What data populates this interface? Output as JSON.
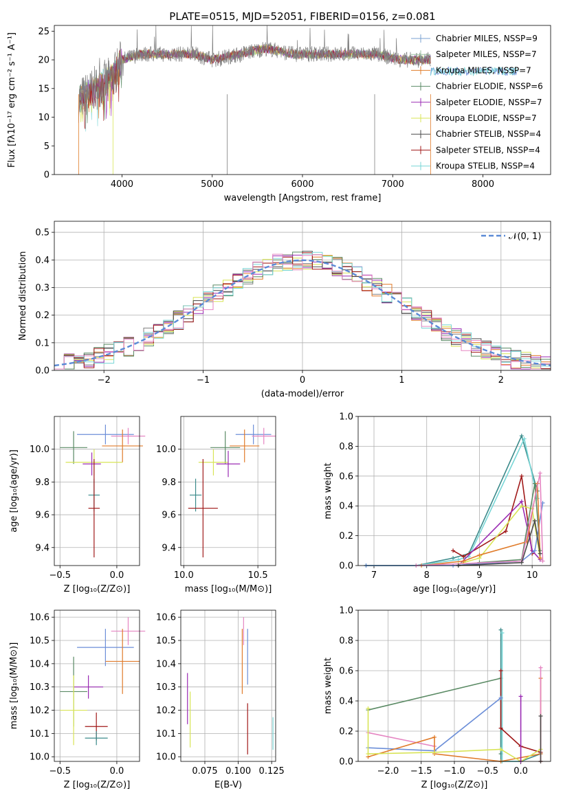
{
  "figure_title": "PLATE=0515, MJD=52051, FIBERID=0156, z=0.081",
  "colors": {
    "grey": "#7f7f7f",
    "orange": "#e07b2a",
    "green": "#5a8a64",
    "purple": "#9a2ab3",
    "yellow": "#d8e456",
    "dark": "#4a4a4a",
    "red": "#a01818",
    "blue": "#6b8ed8",
    "pink": "#e585c2",
    "cyan": "#78d6d6",
    "teal": "#3a8a8a"
  },
  "chart_data": [
    {
      "id": "spectrum",
      "type": "line",
      "title": "PLATE=0515, MJD=52051, FIBERID=0156, z=0.081",
      "xlabel": "wavelength [Angstrom, rest frame]",
      "ylabel": "Flux [fλ10⁻¹⁷ erg cm⁻² s⁻¹ A⁻¹]",
      "xlim": [
        3250,
        8750
      ],
      "ylim": [
        0,
        26
      ],
      "xticks": [
        "4000",
        "5000",
        "6000",
        "7000",
        "8000"
      ],
      "yticks": [
        "0",
        "5",
        "10",
        "15",
        "20",
        "25"
      ],
      "legend_position": "right",
      "legend": [
        {
          "label": "Chabrier MILES, NSSP=9",
          "color": "#78a0d0"
        },
        {
          "label": "Salpeter MILES, NSSP=7",
          "color": "#9ac0a0"
        },
        {
          "label": "Kroupa MILES, NSSP=7",
          "color": "#e07b2a"
        },
        {
          "label": "Chabrier ELODIE, NSSP=6",
          "color": "#5a8a64"
        },
        {
          "label": "Salpeter ELODIE, NSSP=7",
          "color": "#9a2ab3"
        },
        {
          "label": "Kroupa ELODIE, NSSP=7",
          "color": "#d8e456"
        },
        {
          "label": "Chabrier STELIB, NSSP=4",
          "color": "#4a4a4a"
        },
        {
          "label": "Salpeter STELIB, NSSP=4",
          "color": "#a01818"
        },
        {
          "label": "Kroupa STELIB, NSSP=4",
          "color": "#78d6d6"
        }
      ],
      "continuum": [
        [
          3520,
          13
        ],
        [
          3700,
          15
        ],
        [
          3900,
          17
        ],
        [
          4000,
          20
        ],
        [
          4200,
          21
        ],
        [
          4500,
          21
        ],
        [
          4800,
          21
        ],
        [
          5000,
          20
        ],
        [
          5300,
          21
        ],
        [
          5600,
          22
        ],
        [
          5900,
          21
        ],
        [
          6200,
          21
        ],
        [
          6500,
          21
        ],
        [
          6800,
          21
        ],
        [
          7100,
          20
        ],
        [
          7400,
          20
        ]
      ]
    },
    {
      "id": "residuals",
      "type": "line",
      "xlabel": "(data-model)/error",
      "ylabel": "Normed distribution",
      "xlim": [
        -2.5,
        2.5
      ],
      "ylim": [
        0,
        0.54
      ],
      "xticks": [
        "−2",
        "−1",
        "0",
        "1",
        "2"
      ],
      "yticks": [
        "0.0",
        "0.1",
        "0.2",
        "0.3",
        "0.4",
        "0.5"
      ],
      "legend": "𝒩(0, 1)",
      "grid": true,
      "gaussian": {
        "mu": 0,
        "sigma": 1
      }
    },
    {
      "id": "age_vs_Z",
      "type": "scatter",
      "xlabel": "Z [log₁₀(Z/Z⊙)]",
      "ylabel": "age [log₁₀(age/yr)]",
      "xlim": [
        -0.55,
        0.2
      ],
      "ylim": [
        9.29,
        10.2
      ],
      "xticks": [
        "−0.5",
        "0.0"
      ],
      "yticks": [
        "9.4",
        "9.6",
        "9.8",
        "10.0"
      ],
      "grid": true,
      "points": [
        {
          "x": -0.1,
          "y": 10.09,
          "xe": 0.25,
          "ye": 0.06,
          "color": "#6b8ed8"
        },
        {
          "x": 0.1,
          "y": 10.08,
          "xe": 0.15,
          "ye": 0.05,
          "color": "#e585c2"
        },
        {
          "x": 0.05,
          "y": 10.02,
          "xe": 0.18,
          "ye": 0.1,
          "color": "#e07b2a"
        },
        {
          "x": -0.38,
          "y": 10.01,
          "xe": 0.12,
          "ye": 0.1,
          "color": "#5a8a64"
        },
        {
          "x": -0.2,
          "y": 9.92,
          "xe": 0.25,
          "ye": 0.08,
          "color": "#d8e456"
        },
        {
          "x": -0.22,
          "y": 9.91,
          "xe": 0.08,
          "ye": 0.07,
          "color": "#9a2ab3"
        },
        {
          "x": -0.2,
          "y": 9.72,
          "xe": 0.05,
          "ye": 0.1,
          "color": "#3a8a8a"
        },
        {
          "x": -0.2,
          "y": 9.64,
          "xe": 0.05,
          "ye": 0.3,
          "color": "#a01818"
        }
      ]
    },
    {
      "id": "age_vs_mass",
      "type": "scatter",
      "xlabel": "mass [log₁₀(M/M⊙)]",
      "xlim": [
        9.98,
        10.62
      ],
      "ylim": [
        9.29,
        10.2
      ],
      "xticks": [
        "10.0",
        "10.5"
      ],
      "yticks": [
        "9.4",
        "9.6",
        "9.8",
        "10.0"
      ],
      "grid": true,
      "points": [
        {
          "x": 10.47,
          "y": 10.09,
          "xe": 0.12,
          "ye": 0.06,
          "color": "#6b8ed8"
        },
        {
          "x": 10.54,
          "y": 10.08,
          "xe": 0.08,
          "ye": 0.05,
          "color": "#e585c2"
        },
        {
          "x": 10.41,
          "y": 10.02,
          "xe": 0.1,
          "ye": 0.1,
          "color": "#e07b2a"
        },
        {
          "x": 10.28,
          "y": 10.01,
          "xe": 0.1,
          "ye": 0.1,
          "color": "#5a8a64"
        },
        {
          "x": 10.2,
          "y": 9.92,
          "xe": 0.1,
          "ye": 0.08,
          "color": "#d8e456"
        },
        {
          "x": 10.3,
          "y": 9.91,
          "xe": 0.08,
          "ye": 0.08,
          "color": "#9a2ab3"
        },
        {
          "x": 10.08,
          "y": 9.72,
          "xe": 0.04,
          "ye": 0.1,
          "color": "#3a8a8a"
        },
        {
          "x": 10.13,
          "y": 9.64,
          "xe": 0.1,
          "ye": 0.3,
          "color": "#a01818"
        }
      ]
    },
    {
      "id": "weight_vs_age",
      "type": "line",
      "xlabel": "age [log₁₀(age/yr)]",
      "ylabel": "mass weight",
      "xlim": [
        6.7,
        10.35
      ],
      "ylim": [
        0,
        1
      ],
      "xticks": [
        "7",
        "8",
        "9",
        "10"
      ],
      "yticks": [
        "0.0",
        "0.2",
        "0.4",
        "0.6",
        "0.8",
        "1.0"
      ],
      "grid": true,
      "series": [
        {
          "color": "#3a8a8a",
          "x": [
            6.85,
            7.8,
            8.5,
            8.8,
            9.8,
            10.1
          ],
          "y": [
            0.0,
            0.0,
            0.05,
            0.08,
            0.87,
            0.5
          ]
        },
        {
          "color": "#78d6d6",
          "x": [
            6.85,
            7.8,
            8.6,
            8.8,
            9.85,
            10.1
          ],
          "y": [
            0.0,
            0.0,
            0.04,
            0.06,
            0.85,
            0.45
          ]
        },
        {
          "color": "#a01818",
          "x": [
            8.5,
            8.7,
            9.5,
            9.8,
            10.0
          ],
          "y": [
            0.1,
            0.06,
            0.23,
            0.6,
            0.08
          ]
        },
        {
          "color": "#9a2ab3",
          "x": [
            8.6,
            9.8,
            10.0,
            10.15
          ],
          "y": [
            0.0,
            0.43,
            0.1,
            0.04
          ]
        },
        {
          "color": "#d8e456",
          "x": [
            8.6,
            9.0,
            9.8,
            10.0,
            10.15
          ],
          "y": [
            0.01,
            0.05,
            0.4,
            0.38,
            0.05
          ]
        },
        {
          "color": "#5a8a64",
          "x": [
            8.6,
            9.0,
            9.8,
            10.05,
            10.15
          ],
          "y": [
            0.0,
            0.02,
            0.04,
            0.55,
            0.1
          ]
        },
        {
          "color": "#6b8ed8",
          "x": [
            6.85,
            8.5,
            9.8,
            10.05,
            10.2
          ],
          "y": [
            0.0,
            0.0,
            0.03,
            0.1,
            0.42
          ]
        },
        {
          "color": "#e07b2a",
          "x": [
            7.9,
            8.7,
            9.0,
            9.9,
            10.1,
            10.15
          ],
          "y": [
            0.0,
            0.03,
            0.07,
            0.16,
            0.55,
            0.05
          ]
        },
        {
          "color": "#e585c2",
          "x": [
            7.8,
            9.8,
            10.15,
            10.2
          ],
          "y": [
            0.0,
            0.03,
            0.62,
            0.03
          ]
        },
        {
          "color": "#4a4a4a",
          "x": [
            8.6,
            9.8,
            10.05,
            10.15
          ],
          "y": [
            0.0,
            0.02,
            0.3,
            0.08
          ]
        }
      ]
    },
    {
      "id": "mass_vs_Z",
      "type": "scatter",
      "xlabel": "Z [log₁₀(Z/Z⊙)]",
      "ylabel": "mass [log₁₀(M/M⊙)]",
      "xlim": [
        -0.55,
        0.2
      ],
      "ylim": [
        9.98,
        10.63
      ],
      "xticks": [
        "−0.5",
        "0.0"
      ],
      "yticks": [
        "10.0",
        "10.1",
        "10.2",
        "10.3",
        "10.4",
        "10.5",
        "10.6"
      ],
      "grid": true,
      "points": [
        {
          "x": 0.1,
          "y": 10.54,
          "xe": 0.15,
          "ye": 0.06,
          "color": "#e585c2"
        },
        {
          "x": -0.1,
          "y": 10.47,
          "xe": 0.25,
          "ye": 0.08,
          "color": "#6b8ed8"
        },
        {
          "x": 0.05,
          "y": 10.41,
          "xe": 0.15,
          "ye": 0.14,
          "color": "#e07b2a"
        },
        {
          "x": -0.25,
          "y": 10.3,
          "xe": 0.13,
          "ye": 0.05,
          "color": "#9a2ab3"
        },
        {
          "x": -0.38,
          "y": 10.28,
          "xe": 0.12,
          "ye": 0.15,
          "color": "#5a8a64"
        },
        {
          "x": -0.38,
          "y": 10.2,
          "xe": 0.12,
          "ye": 0.15,
          "color": "#d8e456"
        },
        {
          "x": -0.18,
          "y": 10.13,
          "xe": 0.1,
          "ye": 0.06,
          "color": "#a01818"
        },
        {
          "x": -0.18,
          "y": 10.08,
          "xe": 0.1,
          "ye": 0.03,
          "color": "#3a8a8a"
        }
      ]
    },
    {
      "id": "mass_vs_EBV",
      "type": "scatter",
      "xlabel": "E(B-V)",
      "xlim": [
        0.057,
        0.128
      ],
      "ylim": [
        9.98,
        10.63
      ],
      "xticks": [
        "0.075",
        "0.100",
        "0.125"
      ],
      "yticks": [
        "10.0",
        "10.1",
        "10.2",
        "10.3",
        "10.4",
        "10.5",
        "10.6"
      ],
      "grid": true,
      "points": [
        {
          "x": 0.104,
          "y": 10.54,
          "ye": 0.06,
          "color": "#e585c2"
        },
        {
          "x": 0.107,
          "y": 10.43,
          "ye": 0.12,
          "color": "#6b8ed8"
        },
        {
          "x": 0.103,
          "y": 10.41,
          "ye": 0.14,
          "color": "#e07b2a"
        },
        {
          "x": 0.062,
          "y": 10.25,
          "ye": 0.11,
          "color": "#9a2ab3"
        },
        {
          "x": 0.064,
          "y": 10.16,
          "ye": 0.12,
          "color": "#d8e456"
        },
        {
          "x": 0.107,
          "y": 10.12,
          "ye": 0.11,
          "color": "#a01818"
        },
        {
          "x": 0.126,
          "y": 10.1,
          "ye": 0.07,
          "color": "#78d6d6"
        }
      ]
    },
    {
      "id": "weight_vs_Z",
      "type": "line",
      "xlabel": "Z [log₁₀(Z/Z⊙)]",
      "ylabel": "mass weight",
      "xlim": [
        -2.45,
        0.45
      ],
      "ylim": [
        0,
        1
      ],
      "xticks": [
        "−2.0",
        "−1.5",
        "−1.0",
        "−0.5",
        "0.0"
      ],
      "yticks": [
        "0.0",
        "0.2",
        "0.4",
        "0.6",
        "0.8",
        "1.0"
      ],
      "grid": true,
      "series": [
        {
          "color": "#5a8a64",
          "x": [
            -2.3,
            -0.3,
            -0.3
          ],
          "y": [
            0.34,
            0.55,
            0.05
          ]
        },
        {
          "color": "#3a8a8a",
          "x": [
            -0.3,
            -0.3,
            0.0,
            0.3
          ],
          "y": [
            0.87,
            0.0,
            0.0,
            0.05
          ]
        },
        {
          "color": "#78d6d6",
          "x": [
            -0.28,
            -0.28,
            0.0
          ],
          "y": [
            0.85,
            0.0,
            0.0
          ]
        },
        {
          "color": "#a01818",
          "x": [
            -0.3,
            -0.3,
            0.0,
            0.3
          ],
          "y": [
            0.6,
            0.22,
            0.1,
            0.06
          ]
        },
        {
          "color": "#6b8ed8",
          "x": [
            -2.3,
            -1.3,
            -0.3
          ],
          "y": [
            0.09,
            0.07,
            0.42
          ]
        },
        {
          "color": "#e585c2",
          "x": [
            -2.3,
            -1.3
          ],
          "y": [
            0.19,
            0.1
          ]
        },
        {
          "color": "#e07b2a",
          "x": [
            -2.3,
            -1.3,
            -1.3,
            -0.3,
            0.3,
            0.3,
            0.3
          ],
          "y": [
            0.03,
            0.16,
            0.05,
            0.0,
            0.05,
            0.55,
            0.0
          ]
        },
        {
          "color": "#d8e456",
          "x": [
            -2.3,
            -2.3,
            -1.3,
            -0.3,
            0.0,
            0.3
          ],
          "y": [
            0.35,
            0.05,
            0.06,
            0.08,
            0.0,
            0.08
          ]
        },
        {
          "color": "#9a2ab3",
          "x": [
            0.0,
            0.0
          ],
          "y": [
            0.43,
            0.0
          ]
        },
        {
          "color": "#e585c2",
          "x": [
            0.3,
            0.3
          ],
          "y": [
            0.62,
            0.0
          ]
        },
        {
          "color": "#4a4a4a",
          "x": [
            0.3,
            0.3
          ],
          "y": [
            0.3,
            0.0
          ]
        }
      ]
    }
  ]
}
